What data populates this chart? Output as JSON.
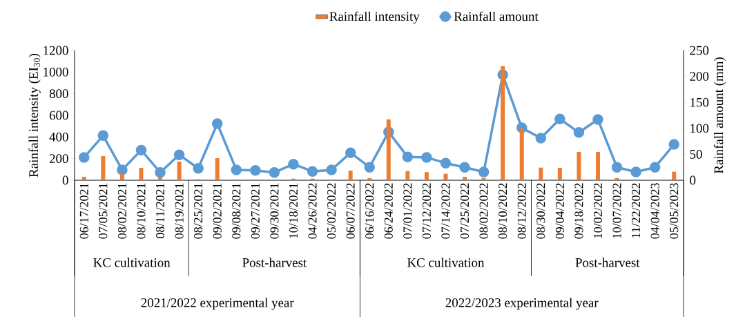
{
  "chart_data": {
    "type": "bar",
    "categories": [
      "06/17/2021",
      "07/05/2021",
      "08/02/2021",
      "08/10/2021",
      "08/11/2021",
      "08/19/2021",
      "08/25/2021",
      "09/02/2021",
      "09/08/2021",
      "09/27/2021",
      "09/30/2021",
      "10/18/2021",
      "04/26/2022",
      "05/02/2022",
      "06/07/2022",
      "06/16/2022",
      "06/24/2022",
      "07/01/2022",
      "07/12/2022",
      "07/14/2022",
      "07/25/2022",
      "08/02/2022",
      "08/10/2022",
      "08/12/2022",
      "08/30/2022",
      "09/04/2022",
      "09/18/2022",
      "10/02/2022",
      "10/07/2022",
      "11/22/2022",
      "04/04/2023",
      "05/05/2023"
    ],
    "series": [
      {
        "name": "Rainfall intensity",
        "color": "#ed7d31",
        "values": [
          32,
          224,
          60,
          115,
          25,
          172,
          10,
          204,
          8,
          8,
          8,
          15,
          15,
          8,
          89,
          20,
          563,
          85,
          75,
          60,
          32,
          20,
          1055,
          480,
          117,
          115,
          262,
          262,
          20,
          8,
          8,
          79
        ]
      },
      {
        "name": "Rainfall amount",
        "type": "line",
        "axis": "y2",
        "color": "#5b9bd5",
        "values": [
          44,
          86,
          20,
          58,
          15,
          49,
          23,
          109,
          20,
          19,
          15,
          31,
          17,
          20,
          53,
          25,
          93,
          45,
          44,
          33,
          25,
          16,
          203,
          101,
          81,
          118,
          92,
          117,
          25,
          16,
          25,
          69
        ]
      }
    ],
    "ylabel": "Rainfall intensity (EI$_{30}$)",
    "y2label": "Rainfall amount (mm)",
    "ylim": [
      0,
      1200
    ],
    "yticks": [
      0,
      200,
      400,
      600,
      800,
      1000,
      1200
    ],
    "y2lim": [
      0,
      250
    ],
    "y2ticks": [
      0,
      50,
      100,
      150,
      200,
      250
    ],
    "legend": "top",
    "marker": "circle",
    "line_style": "solid",
    "annotations": [
      "KC cultivation",
      "Post-harvest",
      "KC cultivation",
      "Post-harvest",
      "2021/2022 experimental year",
      "2022/2023 experimental year"
    ]
  }
}
